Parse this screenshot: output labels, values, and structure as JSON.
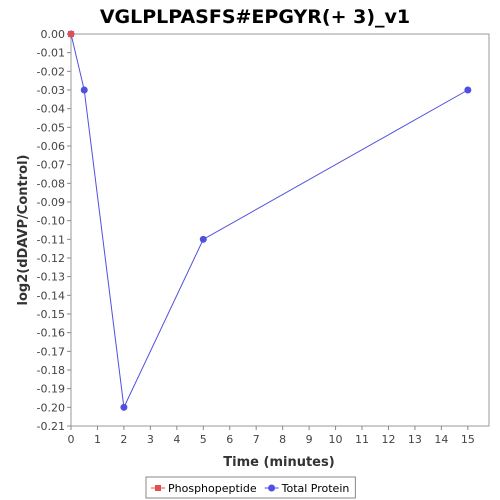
{
  "chart_data": {
    "type": "line",
    "title": "VGLPLPASFS#EPGYR(+ 3)_v1",
    "xlabel": "Time (minutes)",
    "ylabel": "log2(dDAVP/Control)",
    "xlim": [
      0,
      15.8
    ],
    "ylim": [
      -0.21,
      0.0
    ],
    "xticks": [
      0,
      1,
      2,
      3,
      4,
      5,
      6,
      7,
      8,
      9,
      10,
      11,
      12,
      13,
      14,
      15
    ],
    "yticks": [
      0.0,
      -0.01,
      -0.02,
      -0.03,
      -0.04,
      -0.05,
      -0.06,
      -0.07,
      -0.08,
      -0.09,
      -0.1,
      -0.11,
      -0.12,
      -0.13,
      -0.14,
      -0.15,
      -0.16,
      -0.17,
      -0.18,
      -0.19,
      -0.2,
      -0.21
    ],
    "ytick_labels": [
      "0.00",
      "-0.01",
      "-0.02",
      "-0.03",
      "-0.04",
      "-0.05",
      "-0.06",
      "-0.07",
      "-0.08",
      "-0.09",
      "-0.10",
      "-0.11",
      "-0.12",
      "-0.13",
      "-0.14",
      "-0.15",
      "-0.16",
      "-0.17",
      "-0.18",
      "-0.19",
      "-0.20",
      "-0.21"
    ],
    "grid": false,
    "legend": "bottom",
    "series": [
      {
        "name": "Phosphopeptide",
        "color": "#e05050",
        "marker": "square",
        "x": [
          0
        ],
        "y": [
          0.0
        ]
      },
      {
        "name": "Total Protein",
        "color": "#5050e0",
        "marker": "circle",
        "x": [
          0,
          0.5,
          2,
          5,
          15
        ],
        "y": [
          0.0,
          -0.03,
          -0.2,
          -0.11,
          -0.03
        ]
      }
    ]
  }
}
